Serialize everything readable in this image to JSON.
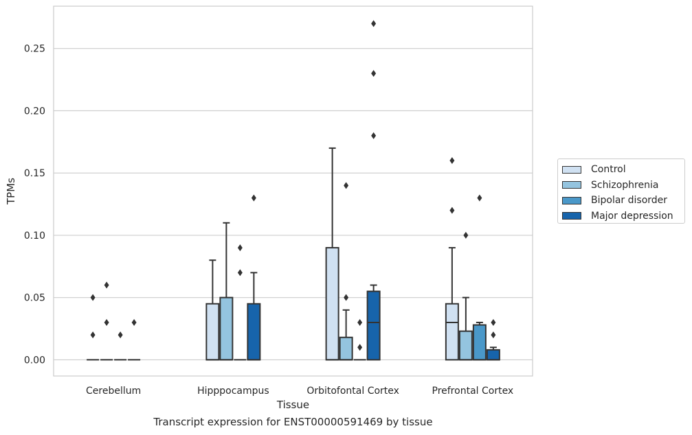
{
  "caption": "Transcript expression for ENST00000591469 by tissue",
  "chart_data": {
    "type": "box",
    "xlabel": "Tissue",
    "ylabel": "TPMs",
    "ylim": [
      -0.013,
      0.284
    ],
    "yticks": [
      0.0,
      0.05,
      0.1,
      0.15,
      0.2,
      0.25
    ],
    "ytick_labels": [
      "0.00",
      "0.05",
      "0.10",
      "0.15",
      "0.20",
      "0.25"
    ],
    "grid": "horizontal",
    "legend_position": "outside-right",
    "categories": [
      "Cerebellum",
      "Hipppocampus",
      "Orbitofontal Cortex",
      "Prefrontal Cortex"
    ],
    "series": [
      {
        "name": "Control",
        "color": "#d0e1f2",
        "boxes": [
          {
            "q1": 0.0,
            "median": 0.0,
            "q3": 0.0,
            "whisker_low": 0.0,
            "whisker_high": 0.0,
            "outliers": [
              0.02,
              0.05
            ]
          },
          {
            "q1": 0.0,
            "median": 0.0,
            "q3": 0.045,
            "whisker_low": 0.0,
            "whisker_high": 0.08,
            "outliers": []
          },
          {
            "q1": 0.0,
            "median": 0.0,
            "q3": 0.09,
            "whisker_low": 0.0,
            "whisker_high": 0.17,
            "outliers": []
          },
          {
            "q1": 0.0,
            "median": 0.03,
            "q3": 0.045,
            "whisker_low": 0.0,
            "whisker_high": 0.09,
            "outliers": [
              0.12,
              0.16
            ]
          }
        ]
      },
      {
        "name": "Schizophrenia",
        "color": "#94c4df",
        "boxes": [
          {
            "q1": 0.0,
            "median": 0.0,
            "q3": 0.0,
            "whisker_low": 0.0,
            "whisker_high": 0.0,
            "outliers": [
              0.03,
              0.06
            ]
          },
          {
            "q1": 0.0,
            "median": 0.0,
            "q3": 0.05,
            "whisker_low": 0.0,
            "whisker_high": 0.11,
            "outliers": []
          },
          {
            "q1": 0.0,
            "median": 0.0,
            "q3": 0.018,
            "whisker_low": 0.0,
            "whisker_high": 0.04,
            "outliers": [
              0.05,
              0.14
            ]
          },
          {
            "q1": 0.0,
            "median": 0.0,
            "q3": 0.023,
            "whisker_low": 0.0,
            "whisker_high": 0.05,
            "outliers": [
              0.1
            ]
          }
        ]
      },
      {
        "name": "Bipolar disorder",
        "color": "#4a98c9",
        "boxes": [
          {
            "q1": 0.0,
            "median": 0.0,
            "q3": 0.0,
            "whisker_low": 0.0,
            "whisker_high": 0.0,
            "outliers": [
              0.02
            ]
          },
          {
            "q1": 0.0,
            "median": 0.0,
            "q3": 0.0,
            "whisker_low": 0.0,
            "whisker_high": 0.0,
            "outliers": [
              0.07,
              0.09
            ]
          },
          {
            "q1": 0.0,
            "median": 0.0,
            "q3": 0.0,
            "whisker_low": 0.0,
            "whisker_high": 0.0,
            "outliers": [
              0.01,
              0.03
            ]
          },
          {
            "q1": 0.0,
            "median": 0.0,
            "q3": 0.028,
            "whisker_low": 0.0,
            "whisker_high": 0.03,
            "outliers": [
              0.13
            ]
          }
        ]
      },
      {
        "name": "Major depression",
        "color": "#1764ab",
        "boxes": [
          {
            "q1": 0.0,
            "median": 0.0,
            "q3": 0.0,
            "whisker_low": 0.0,
            "whisker_high": 0.0,
            "outliers": [
              0.03
            ]
          },
          {
            "q1": 0.0,
            "median": 0.0,
            "q3": 0.045,
            "whisker_low": 0.0,
            "whisker_high": 0.07,
            "outliers": [
              0.13
            ]
          },
          {
            "q1": 0.0,
            "median": 0.03,
            "q3": 0.055,
            "whisker_low": 0.0,
            "whisker_high": 0.06,
            "outliers": [
              0.18,
              0.23,
              0.27
            ]
          },
          {
            "q1": 0.0,
            "median": 0.0,
            "q3": 0.008,
            "whisker_low": 0.0,
            "whisker_high": 0.01,
            "outliers": [
              0.02,
              0.03
            ]
          }
        ]
      }
    ]
  }
}
